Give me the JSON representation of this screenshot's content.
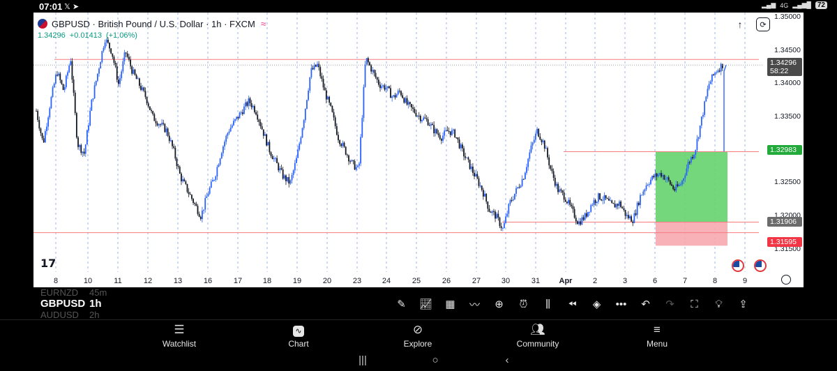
{
  "status_bar": {
    "time": "07:01",
    "icons": [
      "x-logo-icon",
      "telegram-icon"
    ],
    "signal": "4G",
    "battery": "72"
  },
  "chart": {
    "symbol_title": "GBPUSD · British Pound / U.S. Dollar · 1h · FXCM",
    "last_price": "1.34296",
    "change": "+0.01413",
    "change_pct": "(+1.06%)",
    "countdown": "58:22",
    "colors": {
      "up": "#2962ff",
      "down": "#131722",
      "target_zone": "#66d36e",
      "stop_zone": "#f7a8ae",
      "hline": "#f77c80"
    }
  },
  "price_axis": [
    "1.35000",
    "1.34500",
    "1.34000",
    "1.33500",
    "1.32500",
    "1.32000",
    "1.31500"
  ],
  "price_tags": {
    "last": "1.34296",
    "target": "1.32983",
    "entry": "1.31906",
    "stop": "1.31595"
  },
  "date_axis": [
    "8",
    "10",
    "11",
    "12",
    "13",
    "16",
    "17",
    "18",
    "19",
    "20",
    "23",
    "24",
    "25",
    "26",
    "27",
    "30",
    "31",
    "Apr",
    "2",
    "3",
    "6",
    "7",
    "8",
    "9"
  ],
  "chart_data": {
    "type": "candlestick",
    "y_range": [
      1.3145,
      1.3505
    ],
    "horizontal_lines": [
      1.3438,
      1.3298,
      1.3175,
      1.3191
    ],
    "position": {
      "entry": 1.31906,
      "target": 1.32983,
      "stop": 1.31595
    },
    "close_path": [
      1.336,
      1.331,
      1.337,
      1.342,
      1.339,
      1.344,
      1.331,
      1.3295,
      1.337,
      1.342,
      1.347,
      1.345,
      1.34,
      1.345,
      1.342,
      1.34,
      1.338,
      1.335,
      1.334,
      1.333,
      1.33,
      1.326,
      1.324,
      1.322,
      1.32,
      1.3235,
      1.326,
      1.33,
      1.333,
      1.3345,
      1.336,
      1.3375,
      1.336,
      1.333,
      1.33,
      1.328,
      1.326,
      1.325,
      1.329,
      1.335,
      1.342,
      1.343,
      1.339,
      1.336,
      1.332,
      1.33,
      1.328,
      1.327,
      1.344,
      1.342,
      1.34,
      1.3395,
      1.338,
      1.339,
      1.337,
      1.336,
      1.335,
      1.3345,
      1.333,
      1.332,
      1.333,
      1.3325,
      1.33,
      1.328,
      1.326,
      1.324,
      1.321,
      1.32,
      1.318,
      1.322,
      1.324,
      1.326,
      1.33,
      1.333,
      1.331,
      1.327,
      1.324,
      1.323,
      1.321,
      1.319,
      1.32,
      1.322,
      1.323,
      1.3225,
      1.3215,
      1.322,
      1.32,
      1.3195,
      1.323,
      1.325,
      1.326,
      1.3265,
      1.3255,
      1.324,
      1.325,
      1.328,
      1.33,
      1.335,
      1.34,
      1.342,
      1.343
    ]
  },
  "toolbar": {
    "current_symbol": "GBPUSD",
    "current_interval": "1h",
    "prev_symbol": "EURNZD",
    "prev_interval": "45m",
    "next_symbol": "AUDUSD",
    "next_interval": "2h"
  },
  "bottom_nav": {
    "watchlist": "Watchlist",
    "chart": "Chart",
    "explore": "Explore",
    "community": "Community",
    "menu": "Menu"
  }
}
